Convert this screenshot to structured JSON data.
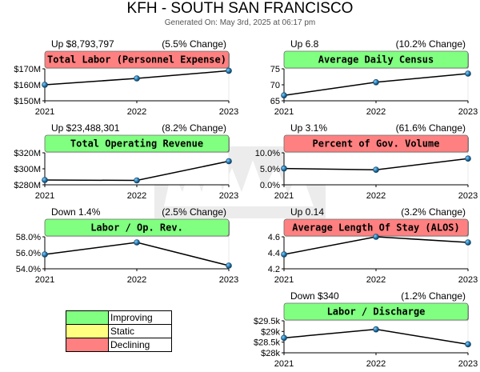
{
  "header": {
    "title": "KFH - SOUTH SAN FRANCISCO",
    "generated": "Generated On: May 3rd, 2025 at 06:17 pm"
  },
  "colors": {
    "improving": "#80ff80",
    "static": "#ffff80",
    "declining": "#ff8080",
    "line": "#000000",
    "marker": "#1a6aa0"
  },
  "legend": [
    {
      "label": "Improving",
      "color": "#80ff80"
    },
    {
      "label": "Static",
      "color": "#ffff80"
    },
    {
      "label": "Declining",
      "color": "#ff8080"
    }
  ],
  "chart_data": [
    {
      "type": "line",
      "title": "Total Labor (Personnel Expense)",
      "status": "declining",
      "summary": "Up $8,793,797",
      "change": "(5.5% Change)",
      "x": [
        "2021",
        "2022",
        "2023"
      ],
      "values": [
        160000000,
        164000000,
        168800000
      ],
      "ylim": [
        150000000,
        170000000
      ],
      "yticks": [
        150000000,
        160000000,
        170000000
      ],
      "yticklabels": [
        "$150M",
        "$160M",
        "$170M"
      ]
    },
    {
      "type": "line",
      "title": "Average Daily Census",
      "status": "improving",
      "summary": "Up 6.8",
      "change": "(10.2% Change)",
      "x": [
        "2021",
        "2022",
        "2023"
      ],
      "values": [
        66.7,
        70.8,
        73.5
      ],
      "ylim": [
        65,
        75
      ],
      "yticks": [
        65,
        70,
        75
      ],
      "yticklabels": [
        "65",
        "70",
        "75"
      ]
    },
    {
      "type": "line",
      "title": "Total Operating Revenue",
      "status": "improving",
      "summary": "Up $23,488,301",
      "change": "(8.2% Change)",
      "x": [
        "2021",
        "2022",
        "2023"
      ],
      "values": [
        286000000,
        285500000,
        309500000
      ],
      "ylim": [
        280000000,
        320000000
      ],
      "yticks": [
        280000000,
        300000000,
        320000000
      ],
      "yticklabels": [
        "$280M",
        "$300M",
        "$320M"
      ]
    },
    {
      "type": "line",
      "title": "Percent of Gov. Volume",
      "status": "declining",
      "summary": "Up 3.1%",
      "change": "(61.6% Change)",
      "x": [
        "2021",
        "2022",
        "2023"
      ],
      "values": [
        5.1,
        4.7,
        8.2
      ],
      "ylim": [
        0,
        10
      ],
      "yticks": [
        0,
        5,
        10
      ],
      "yticklabels": [
        "0.0%",
        "5.0%",
        "10.0%"
      ]
    },
    {
      "type": "line",
      "title": "Labor / Op. Rev.",
      "status": "improving",
      "summary": "Down 1.4%",
      "change": "(2.5% Change)",
      "x": [
        "2021",
        "2022",
        "2023"
      ],
      "values": [
        55.8,
        57.3,
        54.4
      ],
      "ylim": [
        54,
        58
      ],
      "yticks": [
        54,
        56,
        58
      ],
      "yticklabels": [
        "54.0%",
        "56.0%",
        "58.0%"
      ]
    },
    {
      "type": "line",
      "title": "Average Length Of Stay (ALOS)",
      "status": "declining",
      "summary": "Up 0.14",
      "change": "(3.2% Change)",
      "x": [
        "2021",
        "2022",
        "2023"
      ],
      "values": [
        4.38,
        4.6,
        4.53
      ],
      "ylim": [
        4.2,
        4.6
      ],
      "yticks": [
        4.2,
        4.4,
        4.6
      ],
      "yticklabels": [
        "4.2",
        "4.4",
        "4.6"
      ]
    },
    {
      "type": "line",
      "title": "Labor / Discharge",
      "status": "improving",
      "summary": "Down $340",
      "change": "(1.2% Change)",
      "x": [
        "2021",
        "2022",
        "2023"
      ],
      "values": [
        28700,
        29100,
        28400
      ],
      "ylim": [
        28000,
        29500
      ],
      "yticks": [
        28000,
        28500,
        29000,
        29500
      ],
      "yticklabels": [
        "$28k",
        "$28.5k",
        "$29k",
        "$29.5k"
      ]
    }
  ]
}
